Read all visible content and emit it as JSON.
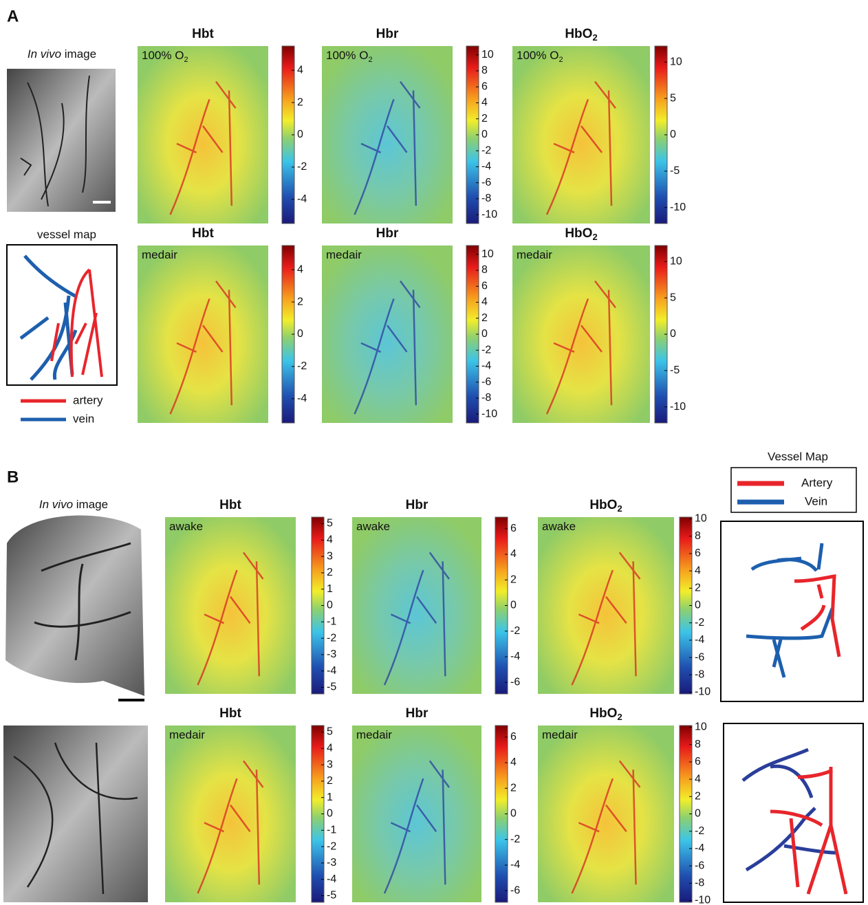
{
  "panel_a": {
    "label": "A",
    "in_vivo": {
      "italic": "In vivo",
      "rest": " image"
    },
    "vessel_map": {
      "title": "vessel map",
      "legend": [
        "artery",
        "vein"
      ]
    },
    "rows": [
      {
        "maps": [
          {
            "title": "Hbt",
            "condition": "100% O",
            "condition_sub": "2",
            "ticks": [
              4,
              2,
              0,
              -2,
              -4
            ],
            "lim": [
              -5.5,
              5.5
            ]
          },
          {
            "title": "Hbr",
            "condition": "100% O",
            "condition_sub": "2",
            "ticks": [
              10,
              8,
              6,
              4,
              2,
              0,
              -2,
              -4,
              -6,
              -8,
              -10
            ],
            "lim": [
              -11.1,
              11.1
            ]
          },
          {
            "title": "HbO",
            "title_sub": "2",
            "condition": "100% O",
            "condition_sub": "2",
            "ticks": [
              10,
              5,
              0,
              -5,
              -10
            ],
            "lim": [
              -12.2,
              12.2
            ]
          }
        ]
      },
      {
        "maps": [
          {
            "title": "Hbt",
            "condition": "medair",
            "ticks": [
              4,
              2,
              0,
              -2,
              -4
            ],
            "lim": [
              -5.5,
              5.5
            ]
          },
          {
            "title": "Hbr",
            "condition": "medair",
            "ticks": [
              10,
              8,
              6,
              4,
              2,
              0,
              -2,
              -4,
              -6,
              -8,
              -10
            ],
            "lim": [
              -11.1,
              11.1
            ]
          },
          {
            "title": "HbO",
            "title_sub": "2",
            "condition": "medair",
            "ticks": [
              10,
              5,
              0,
              -5,
              -10
            ],
            "lim": [
              -12.2,
              12.2
            ]
          }
        ]
      }
    ]
  },
  "panel_b": {
    "label": "B",
    "in_vivo": {
      "italic": "In vivo",
      "rest": " image"
    },
    "vessel_map": {
      "title": "Vessel Map",
      "legend": [
        "Artery",
        "Vein"
      ]
    },
    "rows": [
      {
        "maps": [
          {
            "title": "Hbt",
            "condition": "awake",
            "ticks": [
              5,
              4,
              3,
              2,
              1,
              0,
              -1,
              -2,
              -3,
              -4,
              -5
            ],
            "lim": [
              -5.4,
              5.4
            ]
          },
          {
            "title": "Hbr",
            "condition": "awake",
            "ticks": [
              6,
              4,
              2,
              0,
              -2,
              -4,
              -6
            ],
            "lim": [
              -6.9,
              6.9
            ]
          },
          {
            "title": "HbO",
            "title_sub": "2",
            "condition": "awake",
            "ticks": [
              10,
              8,
              6,
              4,
              2,
              0,
              -2,
              -4,
              -6,
              -8,
              -10
            ],
            "lim": [
              -10.2,
              10.2
            ]
          }
        ]
      },
      {
        "maps": [
          {
            "title": "Hbt",
            "condition": "medair",
            "ticks": [
              5,
              4,
              3,
              2,
              1,
              0,
              -1,
              -2,
              -3,
              -4,
              -5
            ],
            "lim": [
              -5.4,
              5.4
            ]
          },
          {
            "title": "Hbr",
            "condition": "medair",
            "ticks": [
              6,
              4,
              2,
              0,
              -2,
              -4,
              -6
            ],
            "lim": [
              -6.9,
              6.9
            ]
          },
          {
            "title": "HbO",
            "title_sub": "2",
            "condition": "medair",
            "ticks": [
              10,
              8,
              6,
              4,
              2,
              0,
              -2,
              -4,
              -6,
              -8,
              -10
            ],
            "lim": [
              -10.2,
              10.2
            ]
          }
        ]
      }
    ]
  }
}
